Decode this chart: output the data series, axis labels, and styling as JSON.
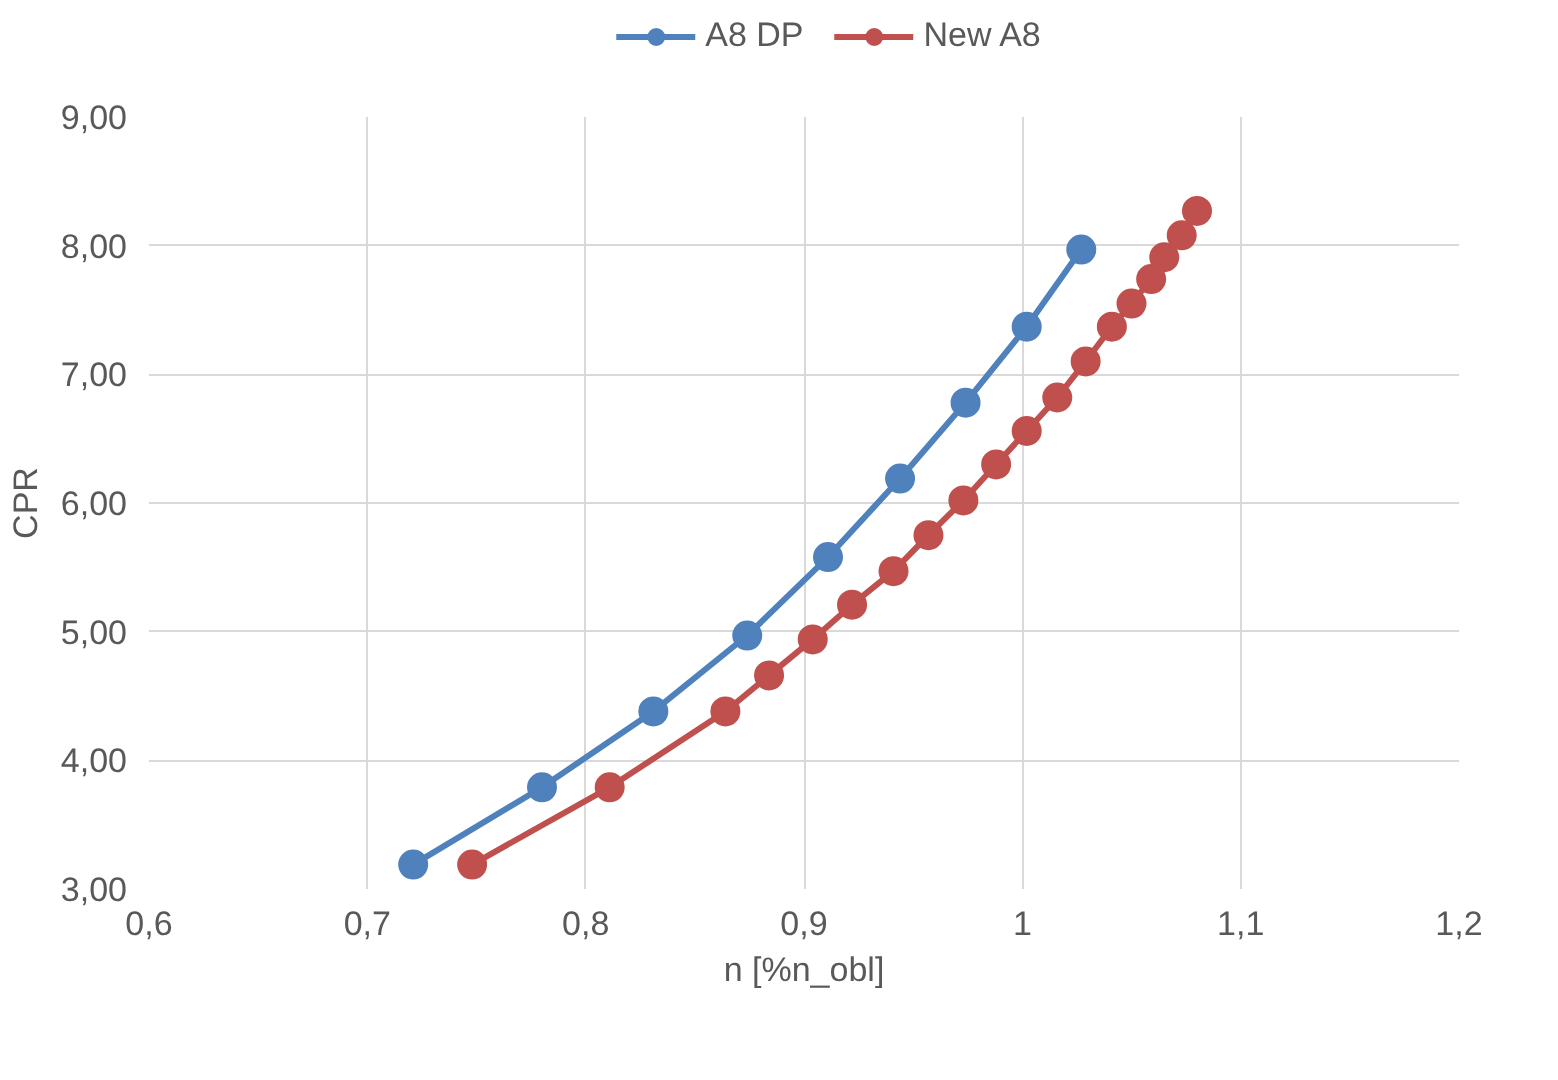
{
  "chart_data": {
    "type": "line",
    "xlabel": "n [%n_obl]",
    "ylabel": "CPR",
    "legend": "top",
    "grid": true,
    "marker": "circle",
    "line_style": "solid",
    "xlim": [
      0.6,
      1.2
    ],
    "ylim": [
      3,
      9
    ],
    "xticks": [
      {
        "value": 0.6,
        "label": "0,6"
      },
      {
        "value": 0.7,
        "label": "0,7"
      },
      {
        "value": 0.8,
        "label": "0,8"
      },
      {
        "value": 0.9,
        "label": "0,9"
      },
      {
        "value": 1,
        "label": "1"
      },
      {
        "value": 1.1,
        "label": "1,1"
      },
      {
        "value": 1.2,
        "label": "1,2"
      }
    ],
    "yticks": [
      {
        "value": 3,
        "label": "3,00"
      },
      {
        "value": 4,
        "label": "4,00"
      },
      {
        "value": 5,
        "label": "5,00"
      },
      {
        "value": 6,
        "label": "6,00"
      },
      {
        "value": 7,
        "label": "7,00"
      },
      {
        "value": 8,
        "label": "8,00"
      },
      {
        "value": 9,
        "label": "9,00"
      }
    ],
    "series": [
      {
        "name": "A8 DP",
        "color": "#4f81bd",
        "x": [
          0.721,
          0.78,
          0.831,
          0.874,
          0.911,
          0.944,
          0.974,
          1.002,
          1.027
        ],
        "values": [
          3.19,
          3.79,
          4.38,
          4.97,
          5.58,
          6.19,
          6.78,
          7.37,
          7.97
        ]
      },
      {
        "name": "New A8",
        "color": "#c0504d",
        "x": [
          0.748,
          0.811,
          0.864,
          0.884,
          0.904,
          0.922,
          0.941,
          0.957,
          0.973,
          0.988,
          1.002,
          1.016,
          1.029,
          1.041,
          1.05,
          1.059,
          1.065,
          1.073,
          1.08
        ],
        "values": [
          3.19,
          3.79,
          4.38,
          4.66,
          4.94,
          5.21,
          5.47,
          5.75,
          6.02,
          6.3,
          6.56,
          6.82,
          7.1,
          7.37,
          7.55,
          7.74,
          7.91,
          8.08,
          8.27
        ]
      }
    ]
  }
}
